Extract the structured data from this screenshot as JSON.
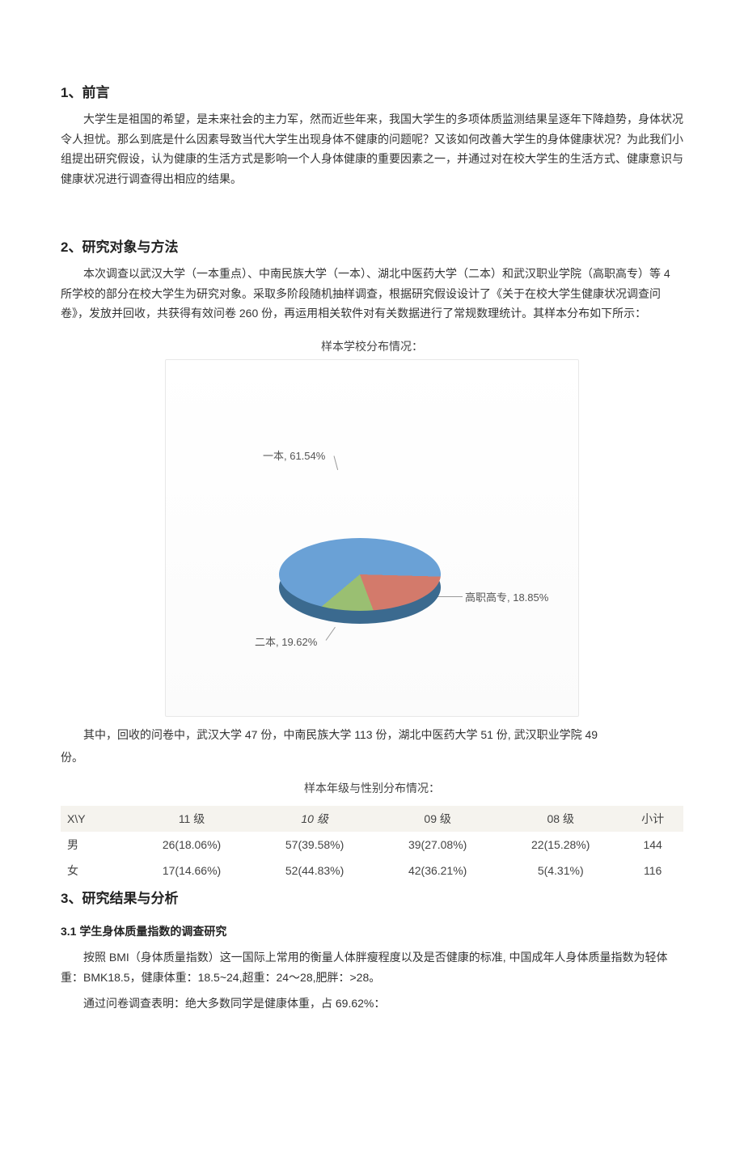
{
  "section1": {
    "heading_num": "1",
    "heading_text": "、前言",
    "p1": "大学生是祖国的希望，是未来社会的主力军，然而近些年来，我国大学生的多项体质监测结果呈逐年下降趋势，身体状况令人担忧。那么到底是什么因素导致当代大学生出现身体不健康的问题呢？又该如何改善大学生的身体健康状况？为此我们小组提出研究假设，认为健康的生活方式是影响一个人身体健康的重要因素之一，并通过对在校大学生的生活方式、健康意识与健康状况进行调查得出相应的结果。"
  },
  "section2": {
    "heading_num": "2",
    "heading_text": "、研究对象与方法",
    "p1": "本次调查以武汉大学（一本重点）、中南民族大学（一本）、湖北中医药大学（二本）和武汉职业学院（高职高专）等 4 所学校的部分在校大学生为研究对象。采取多阶段随机抽样调查，根据研究假设设计了《关于在校大学生健康状况调查问卷》，发放并回收，共获得有效问卷 260 份，再运用相关软件对有关数据进行了常规数理统计。其样本分布如下所示：",
    "chart_title": "样本学校分布情况：",
    "pie": {
      "type": "pie-3d",
      "background": "#ffffff",
      "slices": [
        {
          "label": "一本, 61.54%",
          "value": 61.54,
          "color": "#6aa1d6"
        },
        {
          "label": "高职高专, 18.85%",
          "value": 18.85,
          "color": "#d37a6b"
        },
        {
          "label": "二本, 19.62%",
          "value": 19.62,
          "color": "#9abf72"
        }
      ],
      "label_fontsize": 13,
      "label_color": "#555555"
    },
    "note1_indent": "其中，回收的问卷中，武汉大学 47 份，中南民族大学 113 份，湖北中医药大学 51 份, 武汉职业学院 49",
    "note1_rest": "份。",
    "table_title": "样本年级与性别分布情况：",
    "table": {
      "columns": [
        "X\\Y",
        "11 级",
        "10 级",
        "09 级",
        "08 级",
        "小计"
      ],
      "col_italic": [
        false,
        false,
        true,
        false,
        false,
        false
      ],
      "header_bg": "#f5f3ee",
      "rows": [
        [
          "男",
          "26(18.06%)",
          "57(39.58%)",
          "39(27.08%)",
          "22(15.28%)",
          "144"
        ],
        [
          "女",
          "17(14.66%)",
          "52(44.83%)",
          "42(36.21%)",
          "5(4.31%)",
          "116"
        ]
      ]
    }
  },
  "section3": {
    "heading_num": "3",
    "heading_text": "、研究结果与分析",
    "sub_heading": "3.1  学生身体质量指数的调查研究",
    "p1": "按照 BMI（身体质量指数）这一国际上常用的衡量人体胖瘦程度以及是否健康的标准, 中国成年人身体质量指数为轻体重：BMK18.5，健康体重：18.5~24,超重：24～28,肥胖：>28。",
    "p2": "通过问卷调查表明：绝大多数同学是健康体重，占 69.62%："
  }
}
